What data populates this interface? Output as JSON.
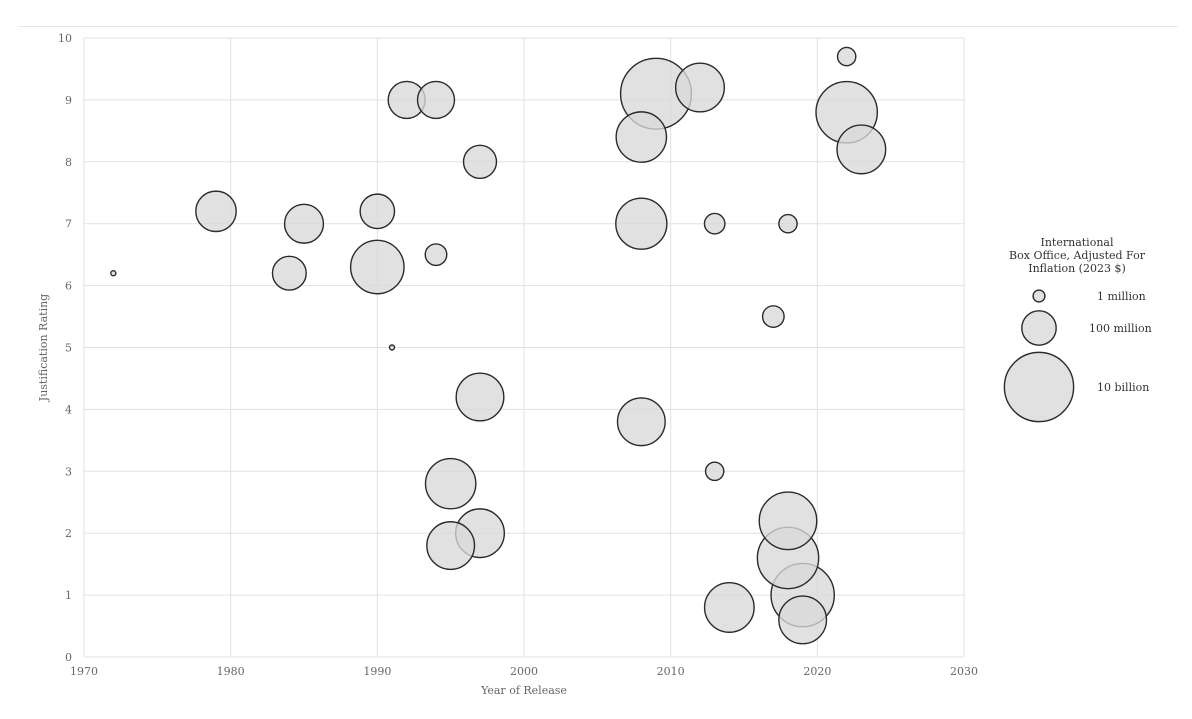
{
  "chart_data": {
    "type": "bubble",
    "xlabel": "Year of Release",
    "ylabel": "Justification Rating",
    "xlim": [
      1970,
      2030
    ],
    "ylim": [
      0,
      10
    ],
    "x_ticks": [
      1970,
      1980,
      1990,
      2000,
      2010,
      2020,
      2030
    ],
    "y_ticks": [
      0,
      1,
      2,
      3,
      4,
      5,
      6,
      7,
      8,
      9,
      10
    ],
    "grid": true,
    "legend_position": "right",
    "legend": {
      "title_lines": [
        "International",
        "Box Office, Adjusted For",
        "Inflation (2023 $)"
      ],
      "entries": [
        {
          "label": "1 million",
          "value": 1000000
        },
        {
          "label": "100 million",
          "value": 100000000
        },
        {
          "label": "10 billion",
          "value": 10000000000
        }
      ]
    },
    "colors": {
      "bubble_fill": "#d8d8d8",
      "bubble_stroke": "#2b2b2b",
      "grid": "#e1e1e1"
    },
    "points": [
      {
        "x": 1972,
        "y": 6.2,
        "size": 50000
      },
      {
        "x": 1979,
        "y": 7.2,
        "size": 250000000
      },
      {
        "x": 1984,
        "y": 6.2,
        "size": 90000000
      },
      {
        "x": 1985,
        "y": 7.0,
        "size": 200000000
      },
      {
        "x": 1990,
        "y": 7.2,
        "size": 100000000
      },
      {
        "x": 1990,
        "y": 6.3,
        "size": 1500000000
      },
      {
        "x": 1991,
        "y": 5.0,
        "size": 50000
      },
      {
        "x": 1992,
        "y": 9.0,
        "size": 150000000
      },
      {
        "x": 1994,
        "y": 9.0,
        "size": 150000000
      },
      {
        "x": 1994,
        "y": 6.5,
        "size": 10000000
      },
      {
        "x": 1995,
        "y": 2.8,
        "size": 1000000000
      },
      {
        "x": 1995,
        "y": 1.8,
        "size": 700000000
      },
      {
        "x": 1997,
        "y": 8.0,
        "size": 80000000
      },
      {
        "x": 1997,
        "y": 4.2,
        "size": 700000000
      },
      {
        "x": 1997,
        "y": 2.0,
        "size": 800000000
      },
      {
        "x": 2008,
        "y": 8.4,
        "size": 1000000000
      },
      {
        "x": 2008,
        "y": 7.0,
        "size": 1100000000
      },
      {
        "x": 2008,
        "y": 3.8,
        "size": 700000000
      },
      {
        "x": 2009,
        "y": 9.1,
        "size": 12000000000
      },
      {
        "x": 2012,
        "y": 9.2,
        "size": 800000000
      },
      {
        "x": 2013,
        "y": 7.0,
        "size": 8000000
      },
      {
        "x": 2013,
        "y": 3.0,
        "size": 5000000
      },
      {
        "x": 2014,
        "y": 0.8,
        "size": 900000000
      },
      {
        "x": 2017,
        "y": 5.5,
        "size": 10000000
      },
      {
        "x": 2018,
        "y": 7.0,
        "size": 5000000
      },
      {
        "x": 2018,
        "y": 2.2,
        "size": 2500000000
      },
      {
        "x": 2018,
        "y": 1.6,
        "size": 4000000000
      },
      {
        "x": 2019,
        "y": 1.0,
        "size": 5000000000
      },
      {
        "x": 2019,
        "y": 0.6,
        "size": 700000000
      },
      {
        "x": 2022,
        "y": 9.7,
        "size": 5000000
      },
      {
        "x": 2022,
        "y": 8.8,
        "size": 4000000000
      },
      {
        "x": 2023,
        "y": 8.2,
        "size": 800000000
      }
    ]
  }
}
